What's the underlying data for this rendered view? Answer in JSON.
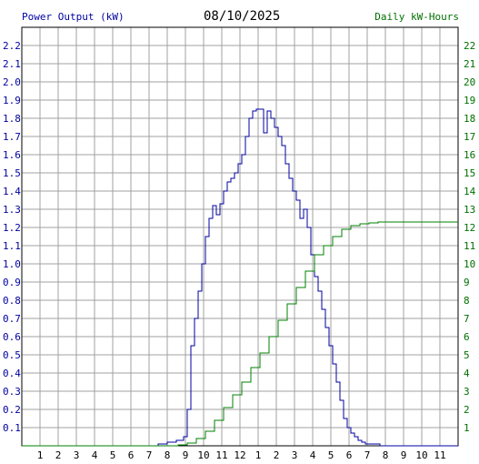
{
  "header": {
    "left_label": "Power Output (kW)",
    "date": "08/10/2025",
    "right_label": "Daily kW-Hours"
  },
  "chart_data": {
    "type": "line",
    "title": "08/10/2025",
    "colors": {
      "power": "#0000a0",
      "energy": "#008000",
      "grid": "#a0a0a0",
      "right_axis_text": "#007000"
    },
    "x_ticks": [
      "1",
      "2",
      "3",
      "4",
      "5",
      "6",
      "7",
      "8",
      "9",
      "10",
      "11",
      "12",
      "1",
      "2",
      "3",
      "4",
      "5",
      "6",
      "7",
      "8",
      "9",
      "10",
      "11"
    ],
    "xlim": [
      0,
      24
    ],
    "left_axis": {
      "label": "Power Output (kW)",
      "ylim": [
        0,
        2.3
      ],
      "ticks": [
        "0.1",
        "0.2",
        "0.3",
        "0.4",
        "0.5",
        "0.6",
        "0.7",
        "0.8",
        "0.9",
        "1.0",
        "1.1",
        "1.2",
        "1.3",
        "1.4",
        "1.5",
        "1.6",
        "1.7",
        "1.8",
        "1.9",
        "2.0",
        "2.1",
        "2.2"
      ]
    },
    "right_axis": {
      "label": "Daily kW-Hours",
      "ylim": [
        0,
        23
      ],
      "ticks": [
        "1",
        "2",
        "3",
        "4",
        "5",
        "6",
        "7",
        "8",
        "9",
        "10",
        "11",
        "12",
        "13",
        "14",
        "15",
        "16",
        "17",
        "18",
        "19",
        "20",
        "21",
        "22"
      ]
    },
    "series": [
      {
        "name": "Power Output (kW)",
        "axis": "left",
        "x": [
          0,
          7,
          7.5,
          8,
          8.5,
          8.9,
          9.1,
          9.3,
          9.5,
          9.7,
          9.9,
          10.1,
          10.3,
          10.5,
          10.7,
          10.9,
          11.1,
          11.3,
          11.5,
          11.7,
          11.9,
          12.1,
          12.3,
          12.5,
          12.7,
          12.9,
          13.1,
          13.3,
          13.5,
          13.7,
          13.9,
          14.1,
          14.3,
          14.5,
          14.7,
          14.9,
          15.1,
          15.3,
          15.5,
          15.7,
          15.9,
          16.1,
          16.3,
          16.5,
          16.7,
          16.9,
          17.1,
          17.3,
          17.5,
          17.7,
          17.9,
          18.1,
          18.3,
          18.5,
          18.7,
          18.9,
          19.1,
          19.3,
          19.5,
          19.7,
          20,
          20.5,
          21,
          24
        ],
        "y": [
          0,
          0,
          0.01,
          0.02,
          0.03,
          0.05,
          0.2,
          0.55,
          0.7,
          0.85,
          1.0,
          1.15,
          1.25,
          1.32,
          1.27,
          1.33,
          1.4,
          1.45,
          1.47,
          1.5,
          1.55,
          1.6,
          1.7,
          1.8,
          1.84,
          1.85,
          1.85,
          1.72,
          1.84,
          1.8,
          1.75,
          1.7,
          1.65,
          1.55,
          1.47,
          1.4,
          1.35,
          1.25,
          1.3,
          1.2,
          1.05,
          0.93,
          0.85,
          0.75,
          0.65,
          0.55,
          0.45,
          0.35,
          0.25,
          0.15,
          0.1,
          0.07,
          0.05,
          0.03,
          0.02,
          0.01,
          0.01,
          0.01,
          0.01,
          0.0,
          0.0,
          0,
          0,
          0
        ]
      },
      {
        "name": "Daily kW-Hours",
        "axis": "right",
        "x": [
          0,
          7.9,
          8.6,
          9.1,
          9.6,
          10.1,
          10.6,
          11.1,
          11.6,
          12.1,
          12.6,
          13.1,
          13.6,
          14.1,
          14.6,
          15.1,
          15.6,
          16.1,
          16.6,
          17.1,
          17.6,
          18.1,
          18.6,
          19.1,
          19.6,
          20.1,
          21,
          24
        ],
        "y": [
          0,
          0,
          0.05,
          0.15,
          0.4,
          0.8,
          1.4,
          2.1,
          2.8,
          3.5,
          4.3,
          5.1,
          6.0,
          6.9,
          7.8,
          8.7,
          9.6,
          10.5,
          11.0,
          11.5,
          11.9,
          12.1,
          12.2,
          12.25,
          12.3,
          12.3,
          12.3,
          12.3
        ]
      }
    ]
  }
}
